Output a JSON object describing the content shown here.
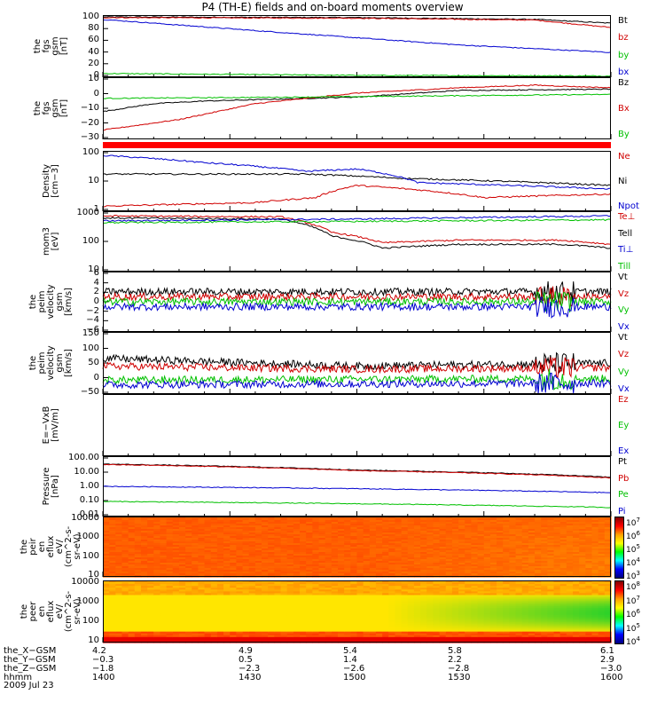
{
  "title": "P4 (TH-E) fields and on-board moments overview",
  "date": "2009 Jul 23",
  "colors": {
    "black": "#000000",
    "red": "#d00000",
    "green": "#00c000",
    "blue": "#0000d0",
    "bar": "#ff0000"
  },
  "chart_data": [
    {
      "type": "line",
      "name": "fgs-gsm",
      "ylabel": "the\nfgs\ngsm\n[nT]",
      "yticks": [
        "100",
        "80",
        "60",
        "40",
        "20",
        "0"
      ],
      "ylim": [
        0,
        100
      ],
      "series": [
        {
          "name": "Bt",
          "color": "black",
          "trend": [
            [
              0,
              97
            ],
            [
              0.5,
              96
            ],
            [
              0.85,
              93
            ],
            [
              1,
              87
            ]
          ]
        },
        {
          "name": "bz",
          "color": "red",
          "trend": [
            [
              0,
              96
            ],
            [
              0.5,
              95
            ],
            [
              0.85,
              92
            ],
            [
              1,
              80
            ]
          ]
        },
        {
          "name": "by",
          "color": "green",
          "trend": [
            [
              0,
              6
            ],
            [
              0.5,
              3
            ],
            [
              1,
              2
            ]
          ]
        },
        {
          "name": "bx",
          "color": "blue",
          "trend": [
            [
              0,
              93
            ],
            [
              0.3,
              75
            ],
            [
              0.7,
              52
            ],
            [
              1,
              40
            ]
          ]
        }
      ]
    },
    {
      "type": "line",
      "name": "fgs-gse-detrended",
      "ylabel": "the\nfgs\ngsm\n[nT]",
      "yticks": [
        "10",
        "0",
        "−10",
        "−20",
        "−30"
      ],
      "ylim": [
        -35,
        12
      ],
      "series": [
        {
          "name": "Bz",
          "color": "black",
          "trend": [
            [
              0,
              -14
            ],
            [
              0.1,
              -8
            ],
            [
              0.2,
              -6
            ],
            [
              0.5,
              -3
            ],
            [
              0.7,
              2
            ],
            [
              1,
              3
            ]
          ]
        },
        {
          "name": "Bx",
          "color": "red",
          "trend": [
            [
              0,
              -28
            ],
            [
              0.15,
              -20
            ],
            [
              0.3,
              -8
            ],
            [
              0.5,
              0
            ],
            [
              0.7,
              4
            ],
            [
              0.85,
              6
            ],
            [
              1,
              4
            ]
          ]
        },
        {
          "name": "By",
          "color": "green",
          "trend": [
            [
              0,
              -4
            ],
            [
              0.4,
              -3
            ],
            [
              1,
              -1
            ]
          ]
        }
      ]
    },
    {
      "type": "line",
      "name": "density",
      "ylabel": "Density\n[cm−3]",
      "yticks": [
        "100",
        "10",
        "1"
      ],
      "log": true,
      "ylim": [
        1,
        130
      ],
      "series": [
        {
          "name": "Ne",
          "color": "red",
          "trend": [
            [
              0,
              1.5
            ],
            [
              0.3,
              2
            ],
            [
              0.42,
              3
            ],
            [
              0.5,
              8
            ],
            [
              0.65,
              5
            ],
            [
              0.75,
              3
            ],
            [
              1,
              4
            ]
          ]
        },
        {
          "name": "Ni",
          "color": "black",
          "trend": [
            [
              0,
              20
            ],
            [
              0.4,
              20
            ],
            [
              0.6,
              14
            ],
            [
              1,
              8
            ]
          ]
        },
        {
          "name": "Npot",
          "color": "blue",
          "trend": [
            [
              0,
              90
            ],
            [
              0.2,
              50
            ],
            [
              0.4,
              25
            ],
            [
              0.5,
              30
            ],
            [
              0.62,
              10
            ],
            [
              0.8,
              8
            ],
            [
              1,
              6
            ]
          ]
        }
      ]
    },
    {
      "type": "line",
      "name": "temperature",
      "ylabel": "mom3\n[eV]",
      "yticks": [
        "1000",
        "100",
        "10"
      ],
      "log": true,
      "ylim": [
        10,
        1000
      ],
      "series": [
        {
          "name": "Te⊥",
          "color": "red",
          "trend": [
            [
              0,
              700
            ],
            [
              0.35,
              650
            ],
            [
              0.45,
              200
            ],
            [
              0.55,
              90
            ],
            [
              0.7,
              110
            ],
            [
              0.9,
              110
            ],
            [
              1,
              80
            ]
          ]
        },
        {
          "name": "Tell",
          "color": "black",
          "trend": [
            [
              0,
              600
            ],
            [
              0.35,
              550
            ],
            [
              0.45,
              150
            ],
            [
              0.55,
              60
            ],
            [
              0.7,
              80
            ],
            [
              0.9,
              80
            ],
            [
              1,
              60
            ]
          ]
        },
        {
          "name": "Ti⊥",
          "color": "blue",
          "trend": [
            [
              0,
              480
            ],
            [
              0.5,
              550
            ],
            [
              1,
              700
            ]
          ]
        },
        {
          "name": "Till",
          "color": "green",
          "trend": [
            [
              0,
              420
            ],
            [
              0.5,
              460
            ],
            [
              1,
              520
            ]
          ]
        }
      ]
    },
    {
      "type": "line",
      "name": "peim-velocity-1",
      "ylabel": "the\npeim\nvelocity\ngsm\n[km/s]",
      "yticks": [
        "6",
        "4",
        "2",
        "0",
        "−2",
        "−4",
        "−6"
      ],
      "ylim": [
        -6,
        6
      ],
      "noise": true,
      "series": [
        {
          "name": "Vt",
          "color": "black",
          "trend": [
            [
              0,
              2
            ],
            [
              1,
              2
            ]
          ]
        },
        {
          "name": "Vz",
          "color": "red",
          "trend": [
            [
              0,
              1
            ],
            [
              1,
              1
            ]
          ]
        },
        {
          "name": "Vy",
          "color": "green",
          "trend": [
            [
              0,
              0
            ],
            [
              1,
              0
            ]
          ]
        },
        {
          "name": "Vx",
          "color": "blue",
          "trend": [
            [
              0,
              -1
            ],
            [
              1,
              -1
            ]
          ]
        }
      ]
    },
    {
      "type": "line",
      "name": "peim-velocity-2",
      "ylabel": "the\npeim\nvelocity\ngsm\n[km/s]",
      "yticks": [
        "150",
        "100",
        "50",
        "0",
        "−50"
      ],
      "ylim": [
        -50,
        150
      ],
      "noise": true,
      "series": [
        {
          "name": "Vt",
          "color": "black",
          "trend": [
            [
              0,
              65
            ],
            [
              0.5,
              40
            ],
            [
              1,
              50
            ]
          ]
        },
        {
          "name": "Vz",
          "color": "red",
          "trend": [
            [
              0,
              40
            ],
            [
              0.5,
              30
            ],
            [
              1,
              35
            ]
          ]
        },
        {
          "name": "Vy",
          "color": "green",
          "trend": [
            [
              0,
              -5
            ],
            [
              1,
              0
            ]
          ]
        },
        {
          "name": "Vx",
          "color": "blue",
          "trend": [
            [
              0,
              -20
            ],
            [
              1,
              -15
            ]
          ]
        }
      ]
    },
    {
      "type": "line",
      "name": "e-vxb",
      "ylabel": "E=−VxB\n[mV/m]",
      "yticks": [],
      "ylim": [
        -1,
        1
      ],
      "series": [
        {
          "name": "Ez",
          "color": "red",
          "trend": []
        },
        {
          "name": "Ey",
          "color": "green",
          "trend": []
        },
        {
          "name": "Ex",
          "color": "blue",
          "trend": []
        }
      ]
    },
    {
      "type": "line",
      "name": "pressure",
      "ylabel": "Pressure\n[nPa]",
      "yticks": [
        "100.00",
        "10.00",
        "1.00",
        "0.10",
        "0.01"
      ],
      "log": true,
      "ylim": [
        0.01,
        100
      ],
      "series": [
        {
          "name": "Pt",
          "color": "black",
          "trend": [
            [
              0,
              30
            ],
            [
              0.5,
              12
            ],
            [
              1,
              4
            ]
          ]
        },
        {
          "name": "Pb",
          "color": "red",
          "trend": [
            [
              0,
              28
            ],
            [
              0.5,
              11
            ],
            [
              1,
              3.6
            ]
          ]
        },
        {
          "name": "Pe",
          "color": "green",
          "trend": [
            [
              0,
              0.1
            ],
            [
              0.5,
              0.07
            ],
            [
              1,
              0.04
            ]
          ]
        },
        {
          "name": "Pi",
          "color": "blue",
          "trend": [
            [
              0,
              1
            ],
            [
              0.5,
              0.7
            ],
            [
              1,
              0.38
            ]
          ]
        }
      ]
    },
    {
      "type": "heatmap",
      "name": "peir-eflux",
      "ylabel": "the\npeir\nen\neflux\neV/\n(cm^2-s-\nsr-eV)",
      "yticks": [
        "10000",
        "1000",
        "100",
        "10"
      ],
      "colorbar": {
        "labels": [
          [
            "10",
            "7"
          ],
          [
            "10",
            "6"
          ],
          [
            "10",
            "5"
          ],
          [
            "10",
            "4"
          ],
          [
            "10",
            "3"
          ]
        ]
      }
    },
    {
      "type": "heatmap",
      "name": "peer-eflux",
      "ylabel": "the\npeer\nen\neflux\neV/\n(cm^2-s-\nsr-eV)",
      "yticks": [
        "10000",
        "1000",
        "100",
        "10"
      ],
      "colorbar": {
        "labels": [
          [
            "10",
            "8"
          ],
          [
            "10",
            "7"
          ],
          [
            "10",
            "6"
          ],
          [
            "10",
            "5"
          ],
          [
            "10",
            "4"
          ]
        ]
      }
    }
  ],
  "xaxis": {
    "rows": [
      {
        "label": "the_X−GSM",
        "values": [
          "4.2",
          "4.9",
          "5.4",
          "5.8",
          "6.1"
        ]
      },
      {
        "label": "the_Y−GSM",
        "values": [
          "−0.3",
          "0.5",
          "1.4",
          "2.2",
          "2.9"
        ]
      },
      {
        "label": "the_Z−GSM",
        "values": [
          "−1.8",
          "−2.3",
          "−2.6",
          "−2.8",
          "−3.0"
        ]
      },
      {
        "label": "hhmm",
        "values": [
          "1400",
          "1430",
          "1500",
          "1530",
          "1600"
        ]
      }
    ]
  }
}
